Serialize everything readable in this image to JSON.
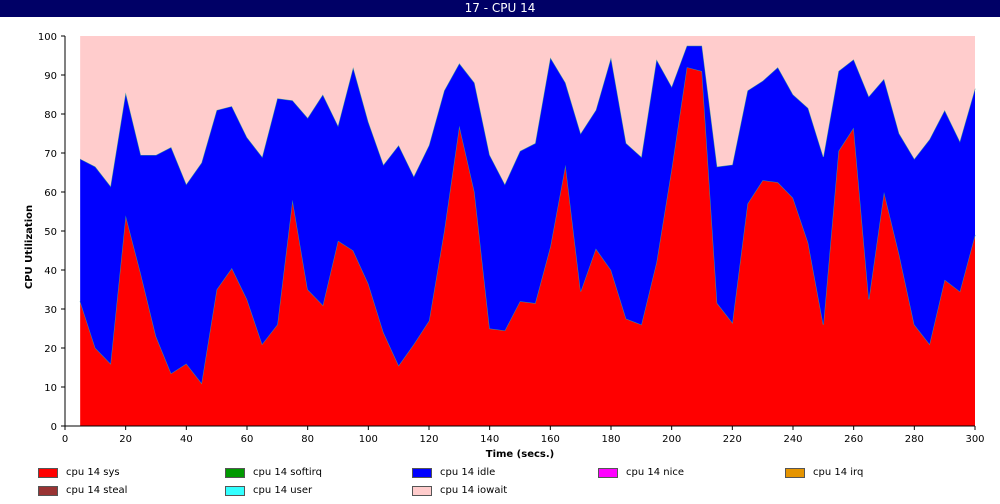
{
  "window_title": "17 - CPU 14",
  "chart_data": {
    "type": "area",
    "stacked": true,
    "xlabel": "Time (secs.)",
    "ylabel": "CPU Utilization",
    "xlim": [
      0,
      300
    ],
    "ylim": [
      0,
      100
    ],
    "x_ticks": [
      0,
      20,
      40,
      60,
      80,
      100,
      120,
      140,
      160,
      180,
      200,
      220,
      240,
      260,
      280,
      300
    ],
    "y_ticks": [
      0,
      10,
      20,
      30,
      40,
      50,
      60,
      70,
      80,
      90,
      100
    ],
    "grid": false,
    "legend_position": "bottom",
    "x": [
      5,
      10,
      15,
      20,
      25,
      30,
      35,
      40,
      45,
      50,
      55,
      60,
      65,
      70,
      75,
      80,
      85,
      90,
      95,
      100,
      105,
      110,
      115,
      120,
      125,
      130,
      135,
      140,
      145,
      150,
      155,
      160,
      165,
      170,
      175,
      180,
      185,
      190,
      195,
      200,
      205,
      210,
      215,
      220,
      225,
      230,
      235,
      240,
      245,
      250,
      255,
      260,
      265,
      270,
      275,
      280,
      285,
      290,
      295,
      300
    ],
    "series": [
      {
        "name": "cpu 14 sys",
        "color": "#ff0000",
        "values": [
          32,
          20,
          16,
          54,
          39,
          23,
          13.5,
          16,
          11,
          35,
          40.5,
          32.5,
          21,
          26,
          58,
          35,
          31,
          47.5,
          45,
          36.5,
          24,
          15.5,
          21,
          27,
          50,
          77,
          60,
          25,
          24.5,
          32,
          31.5,
          46,
          67,
          34.5,
          45.5,
          40,
          27.5,
          26,
          42,
          66,
          92,
          91,
          31.5,
          26.5,
          57,
          63,
          62.5,
          58.5,
          47,
          26,
          70.5,
          76.5,
          32.5,
          60,
          44,
          26,
          21,
          37.5,
          34.5,
          49
        ]
      },
      {
        "name": "cpu 14 softirq",
        "color": "#009900",
        "values": [
          0,
          0,
          0,
          0,
          0,
          0,
          0,
          0,
          0,
          0,
          0,
          0,
          0,
          0,
          0,
          0,
          0,
          0,
          0,
          0,
          0,
          0,
          0,
          0,
          0,
          0,
          0,
          0,
          0,
          0,
          0,
          0,
          0,
          0,
          0,
          0,
          0,
          0,
          0,
          0,
          0,
          0,
          0,
          0,
          0,
          0,
          0,
          0,
          0,
          0,
          0,
          0,
          0,
          0,
          0,
          0,
          0,
          0,
          0,
          0
        ]
      },
      {
        "name": "cpu 14 idle",
        "color": "#0000ff",
        "values": [
          36.5,
          46.5,
          45.5,
          31.5,
          30.5,
          46.5,
          58,
          46,
          56.5,
          46,
          41.5,
          41.5,
          48,
          58,
          25.5,
          44,
          54,
          29.5,
          47,
          41.5,
          43,
          56.5,
          43,
          45,
          36,
          16,
          28,
          44.5,
          37.5,
          38.5,
          41,
          48.5,
          21,
          40.5,
          35.5,
          54.5,
          45,
          43,
          52,
          21,
          5.5,
          6.5,
          35,
          40.5,
          29,
          25.5,
          29.5,
          26.5,
          34.5,
          43,
          20.5,
          17.5,
          52,
          29,
          31,
          42.5,
          52.5,
          43.5,
          38.5,
          37.5
        ]
      },
      {
        "name": "cpu 14 nice",
        "color": "#ff00ff",
        "values": [
          0,
          0,
          0,
          0,
          0,
          0,
          0,
          0,
          0,
          0,
          0,
          0,
          0,
          0,
          0,
          0,
          0,
          0,
          0,
          0,
          0,
          0,
          0,
          0,
          0,
          0,
          0,
          0,
          0,
          0,
          0,
          0,
          0,
          0,
          0,
          0,
          0,
          0,
          0,
          0,
          0,
          0,
          0,
          0,
          0,
          0,
          0,
          0,
          0,
          0,
          0,
          0,
          0,
          0,
          0,
          0,
          0,
          0,
          0,
          0
        ]
      },
      {
        "name": "cpu 14 irq",
        "color": "#e59400",
        "values": [
          0,
          0,
          0,
          0,
          0,
          0,
          0,
          0,
          0,
          0,
          0,
          0,
          0,
          0,
          0,
          0,
          0,
          0,
          0,
          0,
          0,
          0,
          0,
          0,
          0,
          0,
          0,
          0,
          0,
          0,
          0,
          0,
          0,
          0,
          0,
          0,
          0,
          0,
          0,
          0,
          0,
          0,
          0,
          0,
          0,
          0,
          0,
          0,
          0,
          0,
          0,
          0,
          0,
          0,
          0,
          0,
          0,
          0,
          0,
          0
        ]
      },
      {
        "name": "cpu 14 steal",
        "color": "#993333",
        "values": [
          0,
          0,
          0,
          0,
          0,
          0,
          0,
          0,
          0,
          0,
          0,
          0,
          0,
          0,
          0,
          0,
          0,
          0,
          0,
          0,
          0,
          0,
          0,
          0,
          0,
          0,
          0,
          0,
          0,
          0,
          0,
          0,
          0,
          0,
          0,
          0,
          0,
          0,
          0,
          0,
          0,
          0,
          0,
          0,
          0,
          0,
          0,
          0,
          0,
          0,
          0,
          0,
          0,
          0,
          0,
          0,
          0,
          0,
          0,
          0
        ]
      },
      {
        "name": "cpu 14 user",
        "color": "#33ffff",
        "values": [
          0,
          0,
          0,
          0,
          0,
          0,
          0,
          0,
          0,
          0,
          0,
          0,
          0,
          0,
          0,
          0,
          0,
          0,
          0,
          0,
          0,
          0,
          0,
          0,
          0,
          0,
          0,
          0,
          0,
          0,
          0,
          0,
          0,
          0,
          0,
          0,
          0,
          0,
          0,
          0,
          0,
          0,
          0,
          0,
          0,
          0,
          0,
          0,
          0,
          0,
          0,
          0,
          0,
          0,
          0,
          0,
          0,
          0,
          0,
          0
        ]
      },
      {
        "name": "cpu 14 iowait",
        "color": "#ffcccc",
        "values": [
          31.5,
          33.5,
          38.5,
          14.5,
          30.5,
          30.5,
          28.5,
          38,
          32.5,
          19,
          18,
          26,
          31,
          16,
          16.5,
          21,
          15,
          23,
          8,
          22,
          33,
          28,
          36,
          28,
          14,
          7,
          12,
          30.5,
          38,
          29.5,
          27.5,
          5.5,
          12,
          25,
          19,
          5.5,
          27.5,
          31,
          6,
          13,
          2.5,
          2.5,
          33.5,
          33,
          14,
          11.5,
          8,
          15,
          18.5,
          31,
          9,
          6,
          15.5,
          11,
          25,
          31.5,
          26.5,
          19,
          27,
          13.5
        ]
      }
    ]
  }
}
